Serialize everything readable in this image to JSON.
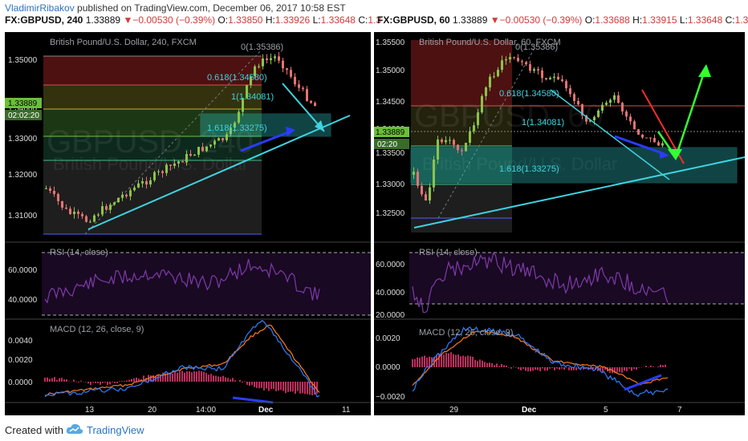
{
  "header": {
    "author": "VladimirRibakov",
    "published_text": "published on TradingView.com, December 06, 2017 10:58 EST"
  },
  "left_chart": {
    "quote": {
      "symbol": "FX:GBPUSD, 240",
      "last": "1.33889",
      "arrow": "▼",
      "change": "−0.00530 (−0.39%)",
      "open_label": "O:",
      "open": "1.33850",
      "high_label": "H:",
      "high": "1.33926",
      "low_label": "L:",
      "low": "1.33648",
      "close_label": "C:",
      "close": "1.3"
    },
    "watermark": "GBPUSD, 240",
    "watermark_sub": "British Pound/U.S. Dollar",
    "title": "British Pound/U.S. Dollar, 240, FXCM",
    "price_axis": [
      "1.35000",
      "1.34000",
      "1.33000",
      "1.32000",
      "1.31000"
    ],
    "price_tag": "1.33889",
    "time_tag": "02:02:20",
    "fib_labels": [
      "0(1.35386)",
      "0.618(1.34580)",
      "1(1.34081)",
      "1.618(1.33275)"
    ],
    "rsi_title": "RSI (14, close)",
    "rsi_axis": [
      "60.0000",
      "40.0000"
    ],
    "macd_title": "MACD (12, 26, close, 9)",
    "macd_axis": [
      "0.0040",
      "0.0020",
      "0.0000"
    ],
    "time_axis": [
      "13",
      "20",
      "14:00",
      "Dec",
      "11"
    ]
  },
  "right_chart": {
    "quote": {
      "symbol": "FX:GBPUSD, 60",
      "last": "1.33889",
      "arrow": "▼",
      "change": "−0.00530 (−0.39%)",
      "open_label": "O:",
      "open": "1.33688",
      "high_label": "H:",
      "high": "1.33915",
      "low_label": "L:",
      "low": "1.33648",
      "close_label": "C:",
      "close": "1.3"
    },
    "watermark": "GBPUSD, 60",
    "watermark_sub": "British Pound/U.S. Dollar",
    "title": "British Pound/U.S. Dollar, 60, FXCM",
    "price_axis": [
      "1.35500",
      "1.35000",
      "1.34500",
      "1.34000",
      "1.33500",
      "1.33000",
      "1.32500"
    ],
    "price_tag": "1.33889",
    "time_tag": "02:20",
    "fib_labels": [
      "0(1.35386)",
      "0.618(1.34580)",
      "1(1.34081)",
      "1.618(1.33275)"
    ],
    "rsi_title": "RSI (14, close)",
    "rsi_axis": [
      "60.0000",
      "40.0000",
      "20.0000"
    ],
    "macd_title": "MACD (12, 26, close, 9)",
    "macd_axis": [
      "0.0020",
      "0.0000",
      "−0.0020"
    ],
    "time_axis": [
      "29",
      "Dec",
      "5",
      "7"
    ]
  },
  "footer": {
    "created_with": "Created with",
    "brand": "TradingView"
  },
  "colors": {
    "up_candle": "#8bc34a",
    "down_candle": "#e57373",
    "cyan": "#3fd3e0",
    "blue_arrow": "#2a3cff",
    "green_arrow": "#33ff33",
    "red_line": "#ff2b2b",
    "rsi_line": "#7e3aa8",
    "macd_line": "#2b7fff",
    "signal_line": "#ff7a1a",
    "hist": "#ff3d7f"
  }
}
